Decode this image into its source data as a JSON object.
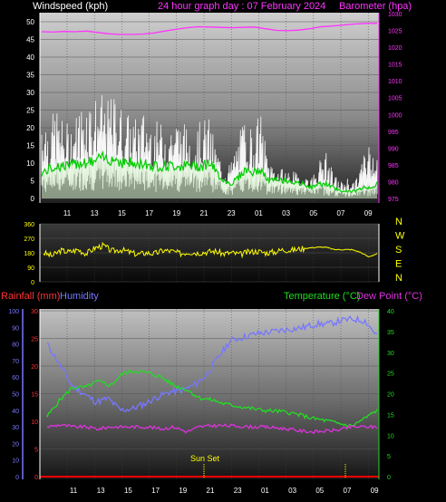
{
  "header": {
    "left_label": "Windspeed (kph)",
    "center_label": "24 hour graph day : 07 February 2024",
    "right_label": "Barometer (hpa)"
  },
  "legend_bottom": {
    "rainfall": "Rainfall (mm)",
    "humidity": "Humidity",
    "temperature": "Temperature (°C)",
    "dewpoint": "Dew Point (°C)"
  },
  "annotations": {
    "sunset": "Sun Set"
  },
  "colors": {
    "wind_gust": "#ffffff",
    "wind_avg": "#d8f5d0",
    "wind_avg_line": "#00cc00",
    "barometer": "#ff33ff",
    "direction": "#ffff00",
    "compass_text": "#ffff00",
    "temperature": "#22dd22",
    "dewpoint": "#dd33dd",
    "humidity": "#7777ff",
    "rainfall": "#ff0000",
    "left_axis_wind": "#ffffff",
    "right_axis_baro": "#ff33ff",
    "rain_axis": "#ff3333",
    "humidity_axis": "#7777ff",
    "temp_axis": "#22dd22"
  },
  "chart_data": [
    {
      "type": "line",
      "name": "wind-barometer",
      "x_ticks": [
        "11",
        "13",
        "15",
        "17",
        "19",
        "21",
        "23",
        "01",
        "03",
        "05",
        "07",
        "09"
      ],
      "y_left_ticks": [
        "0",
        "5",
        "10",
        "15",
        "20",
        "25",
        "30",
        "35",
        "40",
        "45",
        "50"
      ],
      "y_left_range": [
        0,
        50
      ],
      "y_right_ticks": [
        "975",
        "980",
        "985",
        "990",
        "995",
        "1000",
        "1005",
        "1010",
        "1015",
        "1020",
        "1025",
        "1030"
      ],
      "y_right_range": [
        975,
        1030
      ],
      "series": [
        {
          "name": "Windspeed (kph)",
          "role": "gust_upper",
          "values": [
            22,
            18,
            22,
            18,
            18,
            21,
            25,
            24,
            25,
            23,
            25,
            22,
            20,
            19,
            21,
            19,
            18,
            18,
            19,
            19,
            17,
            16,
            19,
            19,
            12,
            8,
            9,
            15,
            20,
            16,
            21,
            10,
            8,
            7,
            7,
            6,
            6,
            5,
            9,
            11,
            6,
            4,
            5,
            4,
            10,
            14,
            13
          ]
        },
        {
          "name": "Windspeed (kph)",
          "role": "average",
          "values": [
            7,
            8,
            9,
            9,
            9,
            10,
            10,
            10,
            11,
            11,
            11,
            10,
            10,
            9,
            10,
            9,
            9,
            9,
            9,
            9,
            9,
            9,
            9,
            10,
            7,
            5,
            4,
            6,
            8,
            7,
            8,
            5,
            5,
            5,
            5,
            4,
            4,
            3,
            4,
            4,
            3,
            2,
            2,
            2,
            3,
            3,
            4
          ]
        },
        {
          "name": "Barometer (hpa)",
          "values": [
            1024.6,
            1024.5,
            1024.7,
            1024.6,
            1024.8,
            1024.4,
            1024.0,
            1023.8,
            1023.8,
            1023.9,
            1024.2,
            1024.8,
            1025.3,
            1025.8,
            1026.1,
            1026.0,
            1025.9,
            1025.8,
            1025.9,
            1026.0,
            1025.5,
            1025.0,
            1024.9,
            1025.1,
            1025.5,
            1026.1,
            1026.3,
            1026.6,
            1026.9,
            1027.1,
            1027.1
          ]
        }
      ]
    },
    {
      "type": "line",
      "name": "wind-direction",
      "y_ticks": [
        "360",
        "270",
        "180",
        "90",
        "0"
      ],
      "y_range": [
        0,
        360
      ],
      "compass": [
        "N",
        "W",
        "S",
        "E",
        "N"
      ],
      "series": [
        {
          "name": "Wind direction",
          "values": [
            180,
            160,
            195,
            185,
            200,
            175,
            210,
            225,
            190,
            200,
            185,
            170,
            180,
            175,
            195,
            190,
            175,
            185,
            180,
            185,
            190,
            175,
            180,
            170,
            185,
            190,
            180,
            185,
            200,
            195,
            205,
            210,
            215,
            215,
            200,
            200,
            200,
            185,
            155,
            175
          ]
        }
      ]
    },
    {
      "type": "line",
      "name": "temperature-humidity",
      "x_ticks": [
        "11",
        "13",
        "15",
        "17",
        "19",
        "21",
        "23",
        "01",
        "03",
        "05",
        "07",
        "09"
      ],
      "y_rain_ticks": [
        "0",
        "5",
        "10",
        "15",
        "20",
        "25",
        "30"
      ],
      "y_rain_range": [
        0,
        30
      ],
      "y_humidity_ticks": [
        "0",
        "10",
        "20",
        "30",
        "40",
        "50",
        "60",
        "70",
        "80",
        "90",
        "100"
      ],
      "y_humidity_range": [
        0,
        100
      ],
      "y_temp_ticks": [
        "0",
        "5",
        "10",
        "15",
        "20",
        "25",
        "30",
        "35",
        "40"
      ],
      "y_temp_range": [
        0,
        40
      ],
      "series": [
        {
          "name": "Temperature (°C)",
          "values": [
            14.5,
            18.5,
            21.5,
            21.5,
            23,
            22,
            25,
            25.5,
            25,
            24,
            22,
            21,
            19,
            18.5,
            17.5,
            17,
            16.5,
            16,
            15.8,
            15.5,
            14.8,
            14,
            13.5,
            12.8,
            12.2,
            14,
            16
          ]
        },
        {
          "name": "Dew Point (°C)",
          "values": [
            12,
            12.5,
            12,
            12,
            11.5,
            12,
            12,
            12,
            12,
            11.5,
            12,
            10.8,
            12,
            12.3,
            12.3,
            12.2,
            12,
            12,
            11.8,
            11.5,
            11,
            10.8,
            11,
            11.3,
            12,
            12,
            12
          ]
        },
        {
          "name": "Humidity",
          "values": [
            80,
            68,
            55,
            50,
            45,
            47,
            40,
            41,
            44,
            48,
            51,
            52,
            55,
            61,
            72,
            82,
            84,
            86,
            87,
            88,
            89,
            90,
            92,
            92,
            94,
            95,
            94,
            85
          ]
        },
        {
          "name": "Rainfall (mm)",
          "values": [
            0,
            0,
            0,
            0,
            0,
            0,
            0,
            0,
            0,
            0,
            0,
            0,
            0
          ]
        }
      ]
    }
  ]
}
